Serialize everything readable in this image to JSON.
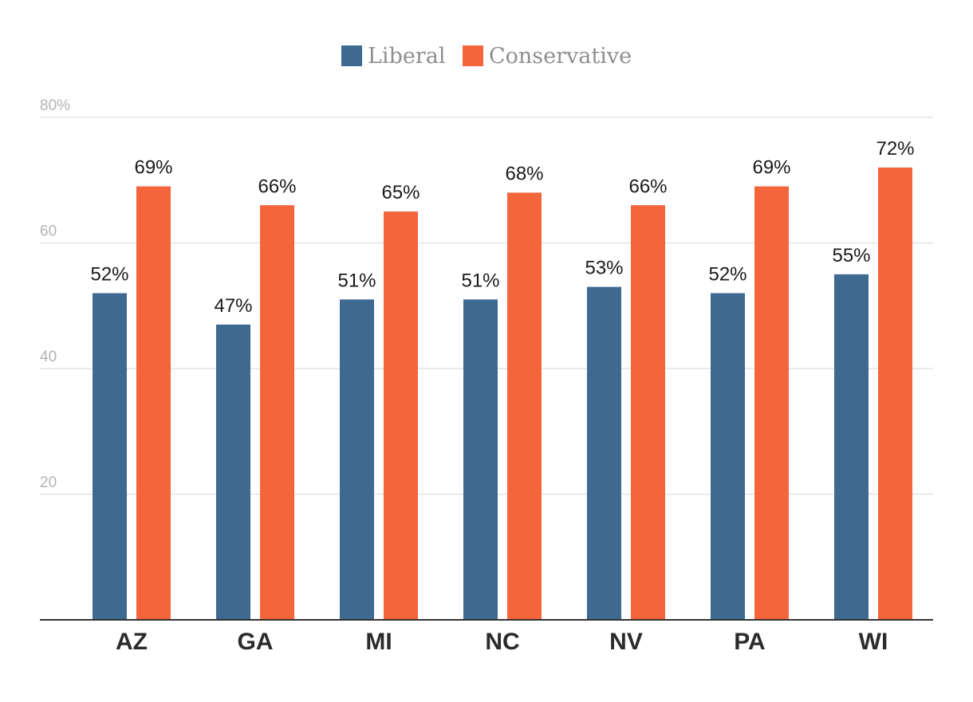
{
  "chart_data": {
    "type": "bar",
    "categories": [
      "AZ",
      "GA",
      "MI",
      "NC",
      "NV",
      "PA",
      "WI"
    ],
    "series": [
      {
        "name": "Liberal",
        "values": [
          52,
          47,
          51,
          51,
          53,
          52,
          55
        ],
        "labels": [
          "52%",
          "47%",
          "51%",
          "51%",
          "53%",
          "52%",
          "55%"
        ],
        "color": "#3e6990"
      },
      {
        "name": "Conservative",
        "values": [
          69,
          66,
          65,
          68,
          66,
          69,
          72
        ],
        "labels": [
          "69%",
          "66%",
          "65%",
          "68%",
          "66%",
          "69%",
          "72%"
        ],
        "color": "#f4653c"
      }
    ],
    "ylim": [
      0,
      80
    ],
    "yticks": [
      20,
      40,
      60,
      80
    ],
    "ytick_labels": [
      "20",
      "40",
      "60",
      "80%"
    ],
    "grid": true,
    "legend_position": "top-center"
  }
}
